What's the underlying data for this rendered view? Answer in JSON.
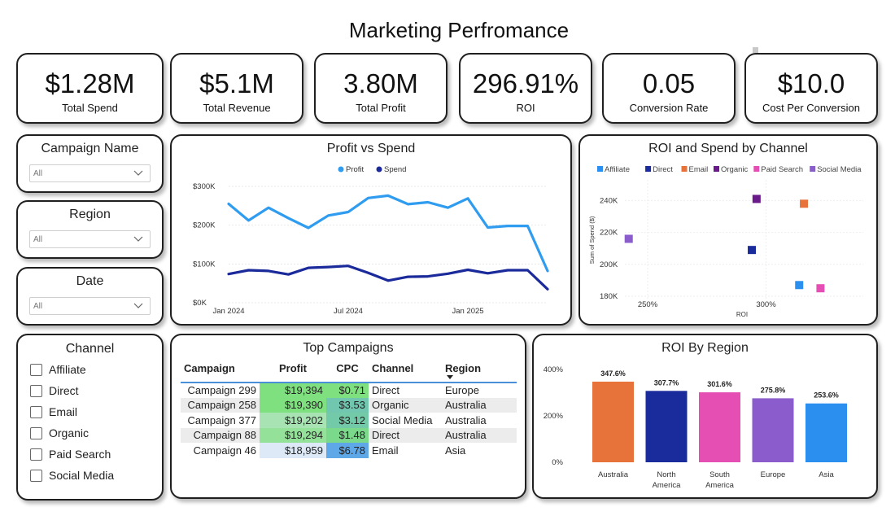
{
  "page_title": "Marketing Perfromance",
  "kpis": [
    {
      "value": "$1.28M",
      "label": "Total Spend"
    },
    {
      "value": "$5.1M",
      "label": "Total Revenue"
    },
    {
      "value": "3.80M",
      "label": "Total Profit"
    },
    {
      "value": "296.91%",
      "label": "ROI"
    },
    {
      "value": "0.05",
      "label": "Conversion Rate"
    },
    {
      "value": "$10.0",
      "label": "Cost Per Conversion"
    }
  ],
  "slicers": [
    {
      "title": "Campaign Name",
      "value": "All"
    },
    {
      "title": "Region",
      "value": "All"
    },
    {
      "title": "Date",
      "value": "All"
    }
  ],
  "channel_slicer": {
    "title": "Channel",
    "options": [
      "Affiliate",
      "Direct",
      "Email",
      "Organic",
      "Paid Search",
      "Social Media"
    ]
  },
  "colors": {
    "profit": "#2f9cf0",
    "spend": "#1b2a9a",
    "affiliate": "#2b8ff0",
    "direct": "#1a2c9b",
    "email": "#e8733a",
    "organic": "#6b1a8c",
    "paid_search": "#e54fb4",
    "social_media": "#8a5ccc",
    "profit_heat_high": "#7ee07e",
    "cpc_heat_high": "#5fa8e8"
  },
  "chart_data": [
    {
      "type": "line",
      "title": "Profit vs Spend",
      "x_ticks": [
        "Jan 2024",
        "Jul 2024",
        "Jan 2025"
      ],
      "y_ticks": [
        "$0K",
        "$100K",
        "$200K",
        "$300K"
      ],
      "ylim": [
        0,
        300000
      ],
      "legend_position": "top-center",
      "x": [
        "2024-01",
        "2024-02",
        "2024-03",
        "2024-04",
        "2024-05",
        "2024-06",
        "2024-07",
        "2024-08",
        "2024-09",
        "2024-10",
        "2024-11",
        "2024-12",
        "2025-01",
        "2025-02",
        "2025-03",
        "2025-04",
        "2025-05"
      ],
      "series": [
        {
          "name": "Profit",
          "values": [
            255000,
            212000,
            245000,
            218000,
            193000,
            225000,
            234000,
            270000,
            276000,
            254000,
            259000,
            245000,
            269000,
            194000,
            198000,
            198000,
            82000
          ]
        },
        {
          "name": "Spend",
          "values": [
            74000,
            84000,
            82000,
            73000,
            90000,
            92000,
            95000,
            77000,
            57000,
            67000,
            68000,
            75000,
            85000,
            76000,
            84000,
            84000,
            35000
          ]
        }
      ]
    },
    {
      "type": "scatter",
      "title": "ROI and Spend by Channel",
      "ylabel": "Sum of Spend ($)",
      "xlabel": "ROI",
      "x_ticks": [
        "250%",
        "300%"
      ],
      "y_ticks": [
        "180K",
        "200K",
        "220K",
        "240K"
      ],
      "legend_position": "top-left",
      "points": [
        {
          "name": "Affiliate",
          "x": 314,
          "y": 187000
        },
        {
          "name": "Direct",
          "x": 294,
          "y": 209000
        },
        {
          "name": "Email",
          "x": 316,
          "y": 238000
        },
        {
          "name": "Organic",
          "x": 296,
          "y": 241000
        },
        {
          "name": "Paid Search",
          "x": 323,
          "y": 185000
        },
        {
          "name": "Social Media",
          "x": 242,
          "y": 216000
        }
      ]
    },
    {
      "type": "bar",
      "title": "ROI By Region",
      "categories": [
        "Australia",
        "North America",
        "South America",
        "Europe",
        "Asia"
      ],
      "values": [
        347.6,
        307.7,
        301.6,
        275.8,
        253.6
      ],
      "data_labels": [
        "347.6%",
        "307.7%",
        "301.6%",
        "275.8%",
        "253.6%"
      ],
      "y_ticks": [
        "0%",
        "200%",
        "400%"
      ],
      "ylim": [
        0,
        400
      ]
    }
  ],
  "top_campaigns": {
    "title": "Top Campaigns",
    "columns": [
      "Campaign",
      "Profit",
      "CPC",
      "Channel",
      "Region"
    ],
    "rows": [
      {
        "campaign": "Campaign 299",
        "profit": "$19,394",
        "cpc": "$0.71",
        "channel": "Direct",
        "region": "Europe",
        "profit_value": 19394,
        "cpc_value": 0.71
      },
      {
        "campaign": "Campaign 258",
        "profit": "$19,390",
        "cpc": "$3.53",
        "channel": "Organic",
        "region": "Australia",
        "profit_value": 19390,
        "cpc_value": 3.53
      },
      {
        "campaign": "Campaign 377",
        "profit": "$19,202",
        "cpc": "$3.12",
        "channel": "Social Media",
        "region": "Australia",
        "profit_value": 19202,
        "cpc_value": 3.12
      },
      {
        "campaign": "Campaign 88",
        "profit": "$19,294",
        "cpc": "$1.48",
        "channel": "Direct",
        "region": "Australia",
        "profit_value": 19294,
        "cpc_value": 1.48
      },
      {
        "campaign": "Campaign 46",
        "profit": "$18,959",
        "cpc": "$6.78",
        "channel": "Email",
        "region": "Asia",
        "profit_value": 18959,
        "cpc_value": 6.78
      }
    ]
  }
}
